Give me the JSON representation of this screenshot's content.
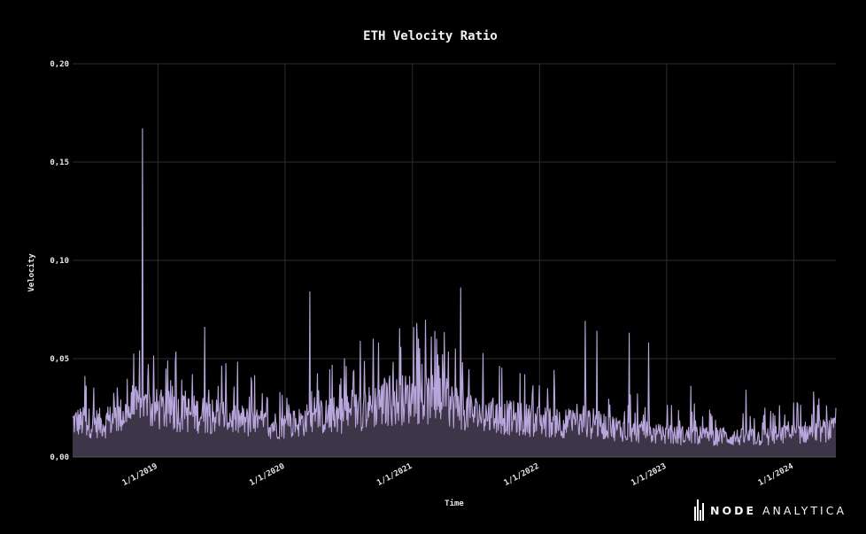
{
  "chart_data": {
    "type": "area",
    "title": "ETH Velocity Ratio",
    "xlabel": "Time",
    "ylabel": "Velocity",
    "ylim": [
      0,
      0.2
    ],
    "y_ticks": [
      0,
      0.05,
      0.1,
      0.15,
      0.2
    ],
    "y_tick_labels": [
      "0,00",
      "0,05",
      "0,10",
      "0,15",
      "0,20"
    ],
    "x_range": [
      "2018-05-01",
      "2024-05-01"
    ],
    "x_ticks": [
      "2019-01-01",
      "2020-01-01",
      "2021-01-01",
      "2022-01-01",
      "2023-01-01",
      "2024-01-01"
    ],
    "x_tick_labels": [
      "1/1/2019",
      "1/1/2020",
      "1/1/2021",
      "1/1/2022",
      "1/1/2023",
      "1/1/2024"
    ],
    "grid": true,
    "line_color": "#b8a7dc",
    "fill_color": "#3d3548",
    "series": [
      {
        "name": "Velocity",
        "baseline": [
          [
            "2018-05-01",
            0.018
          ],
          [
            "2018-08-01",
            0.017
          ],
          [
            "2018-11-01",
            0.025
          ],
          [
            "2019-01-01",
            0.024
          ],
          [
            "2019-04-01",
            0.022
          ],
          [
            "2019-07-01",
            0.021
          ],
          [
            "2019-10-01",
            0.017
          ],
          [
            "2020-01-01",
            0.016
          ],
          [
            "2020-04-01",
            0.02
          ],
          [
            "2020-07-01",
            0.022
          ],
          [
            "2020-10-01",
            0.027
          ],
          [
            "2021-01-01",
            0.03
          ],
          [
            "2021-04-01",
            0.028
          ],
          [
            "2021-07-01",
            0.022
          ],
          [
            "2021-10-01",
            0.02
          ],
          [
            "2022-01-01",
            0.018
          ],
          [
            "2022-04-01",
            0.017
          ],
          [
            "2022-07-01",
            0.016
          ],
          [
            "2022-10-01",
            0.013
          ],
          [
            "2023-01-01",
            0.011
          ],
          [
            "2023-04-01",
            0.011
          ],
          [
            "2023-07-01",
            0.01
          ],
          [
            "2023-10-01",
            0.01
          ],
          [
            "2024-01-01",
            0.012
          ],
          [
            "2024-05-01",
            0.014
          ]
        ],
        "peaks": [
          [
            "2018-06-05",
            0.041
          ],
          [
            "2018-11-10",
            0.054
          ],
          [
            "2018-11-18",
            0.167
          ],
          [
            "2018-12-05",
            0.047
          ],
          [
            "2019-05-15",
            0.066
          ],
          [
            "2019-04-10",
            0.042
          ],
          [
            "2020-03-13",
            0.084
          ],
          [
            "2020-06-20",
            0.05
          ],
          [
            "2020-09-10",
            0.06
          ],
          [
            "2020-09-25",
            0.058
          ],
          [
            "2021-01-05",
            0.066
          ],
          [
            "2021-01-15",
            0.059
          ],
          [
            "2021-02-25",
            0.061
          ],
          [
            "2021-05-19",
            0.086
          ],
          [
            "2021-05-05",
            0.055
          ],
          [
            "2022-05-12",
            0.069
          ],
          [
            "2022-06-15",
            0.064
          ],
          [
            "2022-09-15",
            0.063
          ],
          [
            "2022-11-10",
            0.058
          ],
          [
            "2023-03-12",
            0.036
          ],
          [
            "2023-08-17",
            0.034
          ],
          [
            "2024-01-12",
            0.027
          ]
        ]
      }
    ]
  },
  "brand": {
    "name_bold": "NODE",
    "name_light": "ANALYTICA"
  }
}
